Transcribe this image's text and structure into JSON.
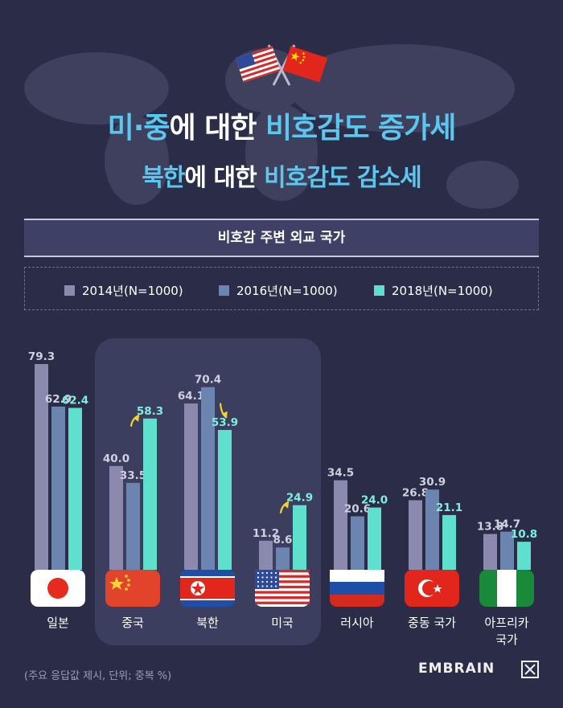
{
  "title_line1": {
    "part1": "미·중",
    "part2": "에 대한 ",
    "part3": "비호감도 증가세"
  },
  "title_line2": {
    "part1": "북한",
    "part2": "에 대한 ",
    "part3": "비호감도 감소세"
  },
  "panel_title": "비호감 주변 외교 국가",
  "footnote": "(주요 응답값 제시, 단위; 중복 %)",
  "brand": "EMBRAIN",
  "colors": {
    "s2014": "#8b89ad",
    "s2016": "#6b84b0",
    "s2018": "#5fe0cf",
    "highlight": "#3c3e5f",
    "arrow": "#f2d22e",
    "value_light": "#cfd0e0",
    "value_2018": "#7ff0de"
  },
  "chart_data": {
    "type": "bar",
    "title": "비호감 주변 외교 국가",
    "categories": [
      "일본",
      "중국",
      "북한",
      "미국",
      "러시아",
      "중동 국가",
      "아프리카 국가"
    ],
    "category_lines": [
      [
        "일본"
      ],
      [
        "중국"
      ],
      [
        "북한"
      ],
      [
        "미국"
      ],
      [
        "러시아"
      ],
      [
        "중동 국가"
      ],
      [
        "아프리카",
        "국가"
      ]
    ],
    "flags": [
      "japan-flag",
      "china-flag",
      "north-korea-flag",
      "usa-flag",
      "russia-flag",
      "turkey-flag",
      "nigeria-flag"
    ],
    "series": [
      {
        "name": "2014년(N=1000)",
        "values": [
          79.3,
          40.0,
          64.1,
          11.2,
          34.5,
          26.8,
          13.8
        ]
      },
      {
        "name": "2016년(N=1000)",
        "values": [
          62.9,
          33.5,
          70.4,
          8.6,
          20.6,
          30.9,
          14.7
        ]
      },
      {
        "name": "2018년(N=1000)",
        "values": [
          62.4,
          58.3,
          53.9,
          24.9,
          24.0,
          21.1,
          10.8
        ]
      }
    ],
    "value_labels": [
      [
        "79.3",
        "40.0",
        "64.1",
        "11.2",
        "34.5",
        "26.8",
        "13.8"
      ],
      [
        "62.9",
        "33.5",
        "70.4",
        "8.6",
        "20.6",
        "30.9",
        "14.7"
      ],
      [
        "62.4",
        "58.3",
        "53.9",
        "24.9",
        "24.0",
        "21.1",
        "10.8"
      ]
    ],
    "highlighted_categories": [
      "중국",
      "북한",
      "미국"
    ],
    "trend_arrows": [
      {
        "category": "중국",
        "direction": "up"
      },
      {
        "category": "북한",
        "direction": "down"
      },
      {
        "category": "미국",
        "direction": "up"
      }
    ],
    "ylim": [
      0,
      80
    ],
    "grid": false,
    "legend": "top"
  }
}
